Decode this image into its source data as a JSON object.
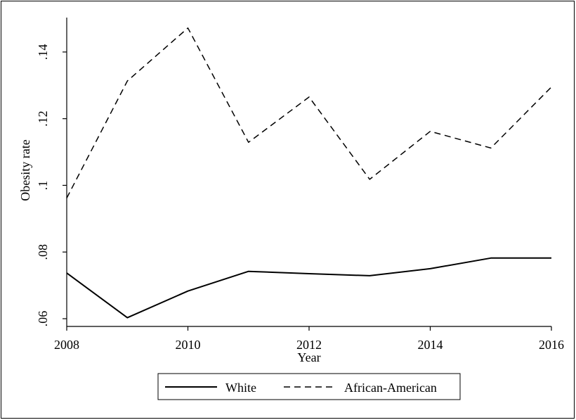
{
  "chart_data": {
    "type": "line",
    "xlabel": "Year",
    "ylabel": "Obesity rate",
    "x": [
      2008,
      2009,
      2010,
      2011,
      2012,
      2013,
      2014,
      2015,
      2016
    ],
    "xlim": [
      2008,
      2016
    ],
    "ylim": [
      0.06,
      0.148
    ],
    "x_ticks": [
      2008,
      2010,
      2012,
      2014,
      2016
    ],
    "x_tick_labels": [
      "2008",
      "2010",
      "2012",
      "2014",
      "2016"
    ],
    "y_ticks": [
      0.06,
      0.08,
      0.1,
      0.12,
      0.14
    ],
    "y_tick_labels": [
      ".06",
      ".08",
      ".1",
      ".12",
      ".14"
    ],
    "grid": false,
    "legend_position": "bottom",
    "series": [
      {
        "name": "White",
        "style": "solid",
        "color": "#000000",
        "values": [
          0.0737,
          0.0603,
          0.0683,
          0.0742,
          0.0735,
          0.0729,
          0.075,
          0.0782,
          0.0782
        ]
      },
      {
        "name": "African-American",
        "style": "dashed",
        "color": "#000000",
        "values": [
          0.0962,
          0.1313,
          0.1472,
          0.1129,
          0.1265,
          0.1018,
          0.1162,
          0.1112,
          0.1295
        ]
      }
    ]
  }
}
